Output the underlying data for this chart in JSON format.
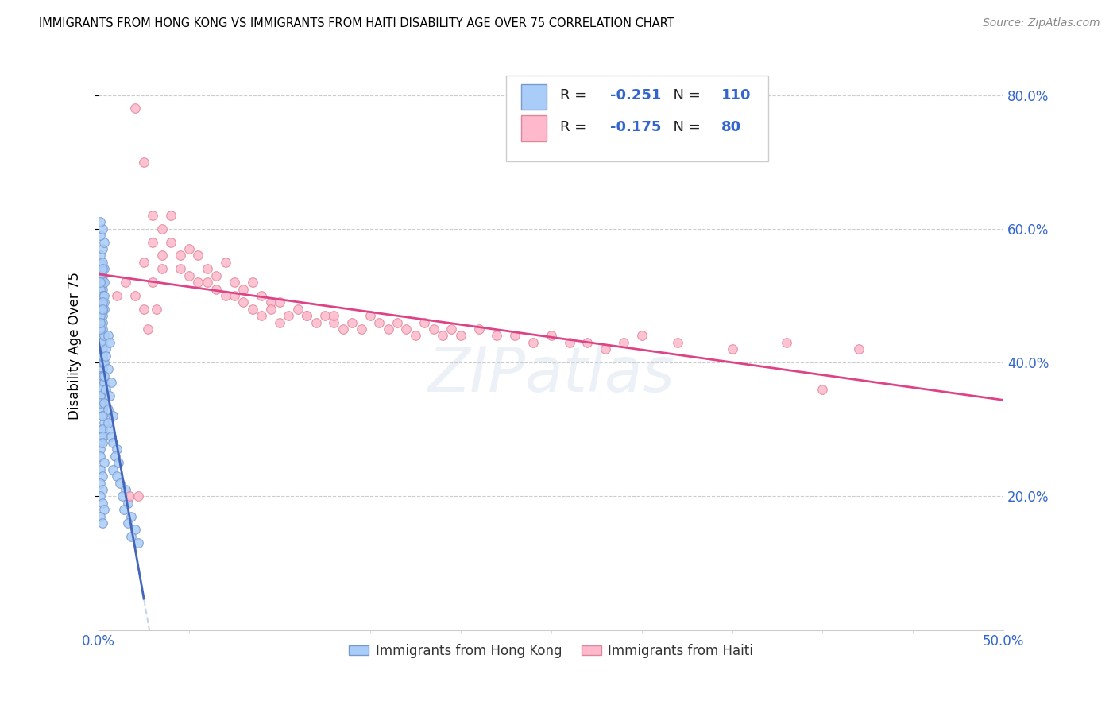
{
  "title": "IMMIGRANTS FROM HONG KONG VS IMMIGRANTS FROM HAITI DISABILITY AGE OVER 75 CORRELATION CHART",
  "source": "Source: ZipAtlas.com",
  "ylabel": "Disability Age Over 75",
  "xmin": 0.0,
  "xmax": 0.5,
  "ymin": 0.0,
  "ymax": 0.85,
  "yticks": [
    0.2,
    0.4,
    0.6,
    0.8
  ],
  "ytick_labels": [
    "20.0%",
    "40.0%",
    "60.0%",
    "80.0%"
  ],
  "xtick_positions": [
    0.0,
    0.5
  ],
  "xtick_labels": [
    "0.0%",
    "50.0%"
  ],
  "hk_color": "#aaccf8",
  "hk_edge_color": "#7799cc",
  "haiti_color": "#ffb8cc",
  "haiti_edge_color": "#dd8899",
  "hk_line_color": "#4466bb",
  "haiti_line_color": "#dd4488",
  "dash_color": "#bbccdd",
  "hk_R": -0.251,
  "hk_N": 110,
  "haiti_R": -0.175,
  "haiti_N": 80,
  "legend_label_hk": "Immigrants from Hong Kong",
  "legend_label_haiti": "Immigrants from Haiti",
  "watermark": "ZIPatlas",
  "hk_scatter_x": [
    0.001,
    0.002,
    0.001,
    0.003,
    0.002,
    0.001,
    0.002,
    0.003,
    0.001,
    0.002,
    0.001,
    0.002,
    0.003,
    0.001,
    0.002,
    0.001,
    0.002,
    0.001,
    0.003,
    0.002,
    0.001,
    0.002,
    0.001,
    0.002,
    0.001,
    0.002,
    0.003,
    0.001,
    0.002,
    0.001,
    0.002,
    0.001,
    0.002,
    0.003,
    0.001,
    0.002,
    0.001,
    0.002,
    0.001,
    0.002,
    0.001,
    0.002,
    0.001,
    0.003,
    0.002,
    0.001,
    0.002,
    0.001,
    0.002,
    0.001,
    0.002,
    0.003,
    0.001,
    0.002,
    0.001,
    0.002,
    0.001,
    0.002,
    0.001,
    0.002,
    0.003,
    0.001,
    0.002,
    0.001,
    0.002,
    0.001,
    0.002,
    0.003,
    0.001,
    0.002,
    0.001,
    0.002,
    0.003,
    0.001,
    0.002,
    0.001,
    0.002,
    0.001,
    0.005,
    0.004,
    0.003,
    0.006,
    0.004,
    0.005,
    0.003,
    0.007,
    0.004,
    0.006,
    0.003,
    0.005,
    0.008,
    0.006,
    0.007,
    0.005,
    0.008,
    0.01,
    0.009,
    0.011,
    0.008,
    0.01,
    0.012,
    0.015,
    0.013,
    0.016,
    0.014,
    0.018,
    0.016,
    0.02,
    0.018,
    0.022
  ],
  "hk_scatter_y": [
    0.5,
    0.52,
    0.55,
    0.48,
    0.53,
    0.49,
    0.51,
    0.54,
    0.47,
    0.5,
    0.56,
    0.57,
    0.58,
    0.59,
    0.6,
    0.61,
    0.55,
    0.53,
    0.52,
    0.54,
    0.46,
    0.48,
    0.44,
    0.45,
    0.43,
    0.47,
    0.49,
    0.51,
    0.5,
    0.52,
    0.42,
    0.41,
    0.43,
    0.44,
    0.4,
    0.39,
    0.38,
    0.4,
    0.37,
    0.41,
    0.36,
    0.38,
    0.35,
    0.37,
    0.34,
    0.36,
    0.33,
    0.35,
    0.32,
    0.34,
    0.3,
    0.31,
    0.29,
    0.32,
    0.28,
    0.3,
    0.27,
    0.29,
    0.26,
    0.28,
    0.25,
    0.24,
    0.23,
    0.22,
    0.21,
    0.2,
    0.19,
    0.18,
    0.17,
    0.16,
    0.48,
    0.46,
    0.5,
    0.47,
    0.49,
    0.45,
    0.48,
    0.46,
    0.44,
    0.42,
    0.4,
    0.43,
    0.41,
    0.39,
    0.38,
    0.37,
    0.36,
    0.35,
    0.34,
    0.33,
    0.32,
    0.3,
    0.29,
    0.31,
    0.28,
    0.27,
    0.26,
    0.25,
    0.24,
    0.23,
    0.22,
    0.21,
    0.2,
    0.19,
    0.18,
    0.17,
    0.16,
    0.15,
    0.14,
    0.13
  ],
  "haiti_scatter_x": [
    0.01,
    0.015,
    0.02,
    0.025,
    0.02,
    0.025,
    0.03,
    0.025,
    0.03,
    0.035,
    0.03,
    0.035,
    0.04,
    0.035,
    0.04,
    0.045,
    0.05,
    0.055,
    0.045,
    0.05,
    0.06,
    0.055,
    0.065,
    0.06,
    0.07,
    0.065,
    0.075,
    0.07,
    0.08,
    0.075,
    0.085,
    0.08,
    0.09,
    0.085,
    0.095,
    0.09,
    0.1,
    0.095,
    0.105,
    0.1,
    0.11,
    0.115,
    0.12,
    0.115,
    0.125,
    0.13,
    0.135,
    0.14,
    0.13,
    0.145,
    0.15,
    0.155,
    0.16,
    0.165,
    0.17,
    0.175,
    0.18,
    0.185,
    0.19,
    0.195,
    0.2,
    0.21,
    0.22,
    0.23,
    0.24,
    0.25,
    0.26,
    0.27,
    0.28,
    0.29,
    0.3,
    0.32,
    0.35,
    0.38,
    0.4,
    0.42,
    0.017,
    0.022,
    0.027,
    0.032
  ],
  "haiti_scatter_y": [
    0.5,
    0.52,
    0.78,
    0.7,
    0.5,
    0.55,
    0.62,
    0.48,
    0.58,
    0.56,
    0.52,
    0.6,
    0.58,
    0.54,
    0.62,
    0.56,
    0.57,
    0.52,
    0.54,
    0.53,
    0.54,
    0.56,
    0.53,
    0.52,
    0.55,
    0.51,
    0.52,
    0.5,
    0.51,
    0.5,
    0.52,
    0.49,
    0.5,
    0.48,
    0.49,
    0.47,
    0.49,
    0.48,
    0.47,
    0.46,
    0.48,
    0.47,
    0.46,
    0.47,
    0.47,
    0.46,
    0.45,
    0.46,
    0.47,
    0.45,
    0.47,
    0.46,
    0.45,
    0.46,
    0.45,
    0.44,
    0.46,
    0.45,
    0.44,
    0.45,
    0.44,
    0.45,
    0.44,
    0.44,
    0.43,
    0.44,
    0.43,
    0.43,
    0.42,
    0.43,
    0.44,
    0.43,
    0.42,
    0.43,
    0.36,
    0.42,
    0.2,
    0.2,
    0.45,
    0.48
  ]
}
